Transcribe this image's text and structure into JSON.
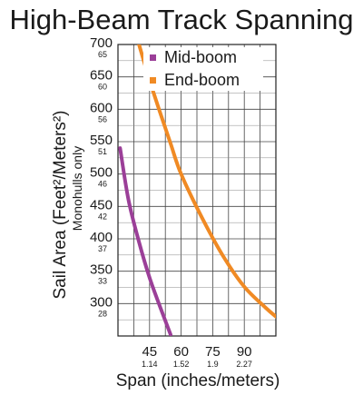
{
  "chart_data": {
    "type": "line",
    "title": "High-Beam Track Spanning",
    "xlabel": "Span (inches/meters)",
    "ylabel": "Sail Area (Feet²/Meters²)",
    "ylabel_sub": "Monohulls only",
    "xlim": [
      30,
      105
    ],
    "ylim": [
      250,
      700
    ],
    "x_ticks": [
      {
        "value": 45,
        "label": "45",
        "sub": "1.14"
      },
      {
        "value": 60,
        "label": "60",
        "sub": "1.52"
      },
      {
        "value": 75,
        "label": "75",
        "sub": "1.9"
      },
      {
        "value": 90,
        "label": "90",
        "sub": "2.27"
      }
    ],
    "y_ticks": [
      {
        "value": 300,
        "label": "300",
        "sub": "28"
      },
      {
        "value": 350,
        "label": "350",
        "sub": "33"
      },
      {
        "value": 400,
        "label": "400",
        "sub": "37"
      },
      {
        "value": 450,
        "label": "450",
        "sub": "42"
      },
      {
        "value": 500,
        "label": "500",
        "sub": "46"
      },
      {
        "value": 550,
        "label": "550",
        "sub": "51"
      },
      {
        "value": 600,
        "label": "600",
        "sub": "56"
      },
      {
        "value": 650,
        "label": "650",
        "sub": "60"
      },
      {
        "value": 700,
        "label": "700",
        "sub": "65"
      }
    ],
    "grid": true,
    "legend_position": "top-right",
    "series": [
      {
        "name": "Mid-boom",
        "color": "#9b3f98",
        "x": [
          31,
          35,
          40,
          45,
          50,
          55
        ],
        "y": [
          540,
          460,
          395,
          340,
          295,
          252
        ]
      },
      {
        "name": "End-boom",
        "color": "#f08a24",
        "x": [
          40,
          45,
          50,
          55,
          60,
          70,
          80,
          90,
          100,
          105
        ],
        "y": [
          700,
          645,
          595,
          547,
          500,
          432,
          373,
          326,
          294,
          280
        ]
      }
    ]
  }
}
